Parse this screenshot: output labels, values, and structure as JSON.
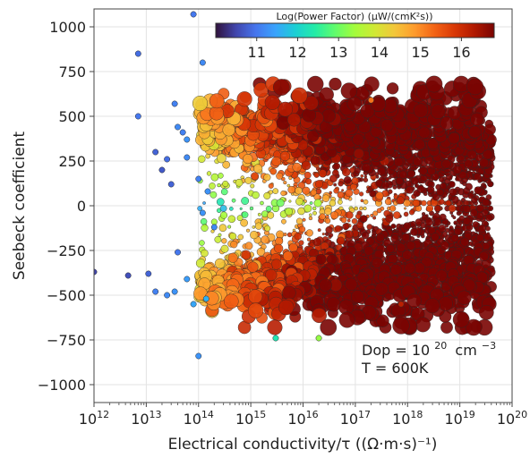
{
  "chart_data": {
    "type": "scatter",
    "xlabel": "Electrical conductivity/τ ((Ω·m·s)⁻¹)",
    "ylabel": "Seebeck coefficient",
    "x_scale": "log",
    "xlim": [
      1000000000000.0,
      1e+20
    ],
    "ylim": [
      -1100,
      1100
    ],
    "x_ticks": [
      {
        "value": 1000000000000.0,
        "base": "10",
        "exp": "12"
      },
      {
        "value": 10000000000000.0,
        "base": "10",
        "exp": "13"
      },
      {
        "value": 100000000000000.0,
        "base": "10",
        "exp": "14"
      },
      {
        "value": 1000000000000000.0,
        "base": "10",
        "exp": "15"
      },
      {
        "value": 1e+16,
        "base": "10",
        "exp": "16"
      },
      {
        "value": 1e+17,
        "base": "10",
        "exp": "17"
      },
      {
        "value": 1e+18,
        "base": "10",
        "exp": "18"
      },
      {
        "value": 1e+19,
        "base": "10",
        "exp": "19"
      },
      {
        "value": 1e+20,
        "base": "10",
        "exp": "20"
      }
    ],
    "y_ticks": [
      {
        "value": 1000,
        "label": "1000"
      },
      {
        "value": 750,
        "label": "750"
      },
      {
        "value": 500,
        "label": "500"
      },
      {
        "value": 250,
        "label": "250"
      },
      {
        "value": 0,
        "label": "0"
      },
      {
        "value": -250,
        "label": "−250"
      },
      {
        "value": -500,
        "label": "−500"
      },
      {
        "value": -750,
        "label": "−750"
      },
      {
        "value": -1000,
        "label": "−1000"
      }
    ],
    "grid": true,
    "colorbar": {
      "label": "Log(Power Factor) (μW/(cmK²s))",
      "range": [
        10,
        16.8
      ],
      "ticks": [
        {
          "value": 11,
          "label": "11"
        },
        {
          "value": 12,
          "label": "12"
        },
        {
          "value": 13,
          "label": "13"
        },
        {
          "value": 14,
          "label": "14"
        },
        {
          "value": 15,
          "label": "15"
        },
        {
          "value": 16,
          "label": "16"
        }
      ],
      "colormap": [
        "#30123b",
        "#4145ab",
        "#4675ed",
        "#39a2fc",
        "#1bcfd4",
        "#24eca6",
        "#61fc6c",
        "#a4fc3b",
        "#d1e834",
        "#f3c63a",
        "#fe9b2d",
        "#f36315",
        "#d93806",
        "#b11901",
        "#7a0402"
      ],
      "placement": "top-center"
    },
    "annotation": {
      "line1_prefix": "Dop = 10",
      "line1_exp": "20",
      "line1_unit": "cm",
      "line1_unit_exp": "−3",
      "line2": "T = 600K"
    },
    "points": [
      {
        "x": 1000000000000.0,
        "y": -370,
        "pf": 10.5
      },
      {
        "x": 4500000000000.0,
        "y": -390,
        "pf": 10.6
      },
      {
        "x": 11000000000000.0,
        "y": -380,
        "pf": 10.8
      },
      {
        "x": 7000000000000.0,
        "y": 850,
        "pf": 10.9
      },
      {
        "x": 7000000000000.0,
        "y": 500,
        "pf": 11.0
      },
      {
        "x": 15000000000000.0,
        "y": 300,
        "pf": 10.8
      },
      {
        "x": 20000000000000.0,
        "y": 200,
        "pf": 10.7
      },
      {
        "x": 25000000000000.0,
        "y": 260,
        "pf": 10.9
      },
      {
        "x": 30000000000000.0,
        "y": 120,
        "pf": 10.8
      },
      {
        "x": 35000000000000.0,
        "y": 570,
        "pf": 11.1
      },
      {
        "x": 40000000000000.0,
        "y": 440,
        "pf": 11.2
      },
      {
        "x": 50000000000000.0,
        "y": 410,
        "pf": 11.1
      },
      {
        "x": 60000000000000.0,
        "y": 370,
        "pf": 11.3
      },
      {
        "x": 60000000000000.0,
        "y": 270,
        "pf": 11.2
      },
      {
        "x": 80000000000000.0,
        "y": 1070,
        "pf": 11.0
      },
      {
        "x": 120000000000000.0,
        "y": 800,
        "pf": 11.2
      },
      {
        "x": 100000000000000.0,
        "y": 150,
        "pf": 11.1
      },
      {
        "x": 150000000000000.0,
        "y": 80,
        "pf": 11.3
      },
      {
        "x": 120000000000000.0,
        "y": -40,
        "pf": 11.3
      },
      {
        "x": 200000000000000.0,
        "y": -120,
        "pf": 11.2
      },
      {
        "x": 15000000000000.0,
        "y": -480,
        "pf": 11.1
      },
      {
        "x": 25000000000000.0,
        "y": -500,
        "pf": 11.2
      },
      {
        "x": 35000000000000.0,
        "y": -480,
        "pf": 11.3
      },
      {
        "x": 40000000000000.0,
        "y": -260,
        "pf": 11.0
      },
      {
        "x": 60000000000000.0,
        "y": -410,
        "pf": 11.4
      },
      {
        "x": 80000000000000.0,
        "y": -550,
        "pf": 11.5
      },
      {
        "x": 100000000000000.0,
        "y": -840,
        "pf": 11.3
      },
      {
        "x": 140000000000000.0,
        "y": -520,
        "pf": 11.6
      },
      {
        "x": 3000000000000000.0,
        "y": -740,
        "pf": 12.3
      },
      {
        "x": 2e+16,
        "y": -740,
        "pf": 13.3
      },
      {
        "x": 7.5e+17,
        "y": -550,
        "pf": 16.2
      },
      {
        "x": 2e+17,
        "y": 590,
        "pf": 15.2
      }
    ]
  }
}
